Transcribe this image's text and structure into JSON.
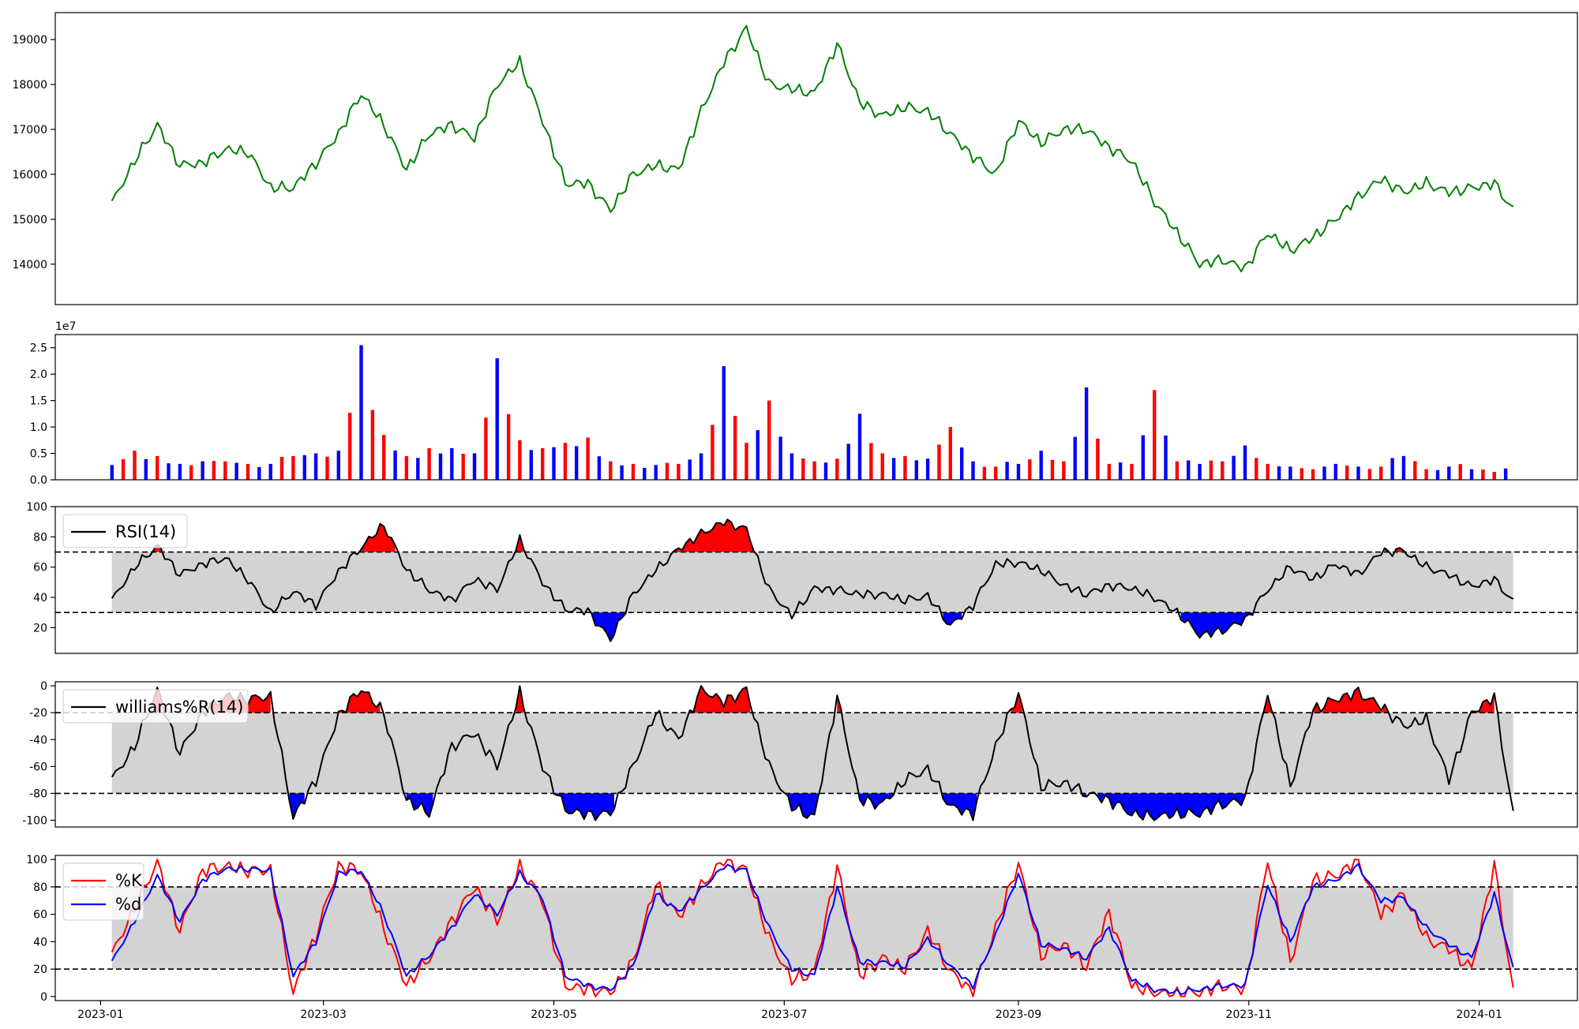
{
  "colors": {
    "price_line": "#008000",
    "volume_up": "#ff0000",
    "volume_down": "#0000ff",
    "overbought_fill": "#ff0000",
    "oversold_fill": "#0000ff",
    "band_fill": "#d3d3d3",
    "k_line": "#ff0000",
    "d_line": "#0000ff",
    "indicator_line": "#000000"
  },
  "x_axis": {
    "tick_labels": [
      "2023-01",
      "2023-03",
      "2023-05",
      "2023-07",
      "2023-09",
      "2023-11",
      "2024-01"
    ],
    "tick_dates": [
      "2023-01-01",
      "2023-03-01",
      "2023-05-01",
      "2023-07-01",
      "2023-09-01",
      "2023-11-01",
      "2024-01-01"
    ],
    "data_start": "2023-01-04",
    "data_end": "2024-01-10",
    "axis_min": "2022-12-20",
    "axis_max": "2024-01-27"
  },
  "chart_data": [
    {
      "type": "line",
      "panel": "price",
      "ylim": [
        13100,
        19600
      ],
      "yticks": [
        14000,
        15000,
        16000,
        17000,
        18000,
        19000
      ],
      "series": [
        {
          "x": [
            "2023-01-04",
            "2023-01-10",
            "2023-01-16",
            "2023-01-22",
            "2023-01-28",
            "2023-02-03",
            "2023-02-09",
            "2023-02-15",
            "2023-02-21",
            "2023-02-27",
            "2023-03-05",
            "2023-03-11",
            "2023-03-17",
            "2023-03-23",
            "2023-03-29",
            "2023-04-04",
            "2023-04-10",
            "2023-04-16",
            "2023-04-22",
            "2023-04-28",
            "2023-05-04",
            "2023-05-10",
            "2023-05-16",
            "2023-05-22",
            "2023-05-28",
            "2023-06-03",
            "2023-06-09",
            "2023-06-15",
            "2023-06-21",
            "2023-06-27",
            "2023-07-03",
            "2023-07-09",
            "2023-07-15",
            "2023-07-21",
            "2023-07-27",
            "2023-08-02",
            "2023-08-08",
            "2023-08-14",
            "2023-08-20",
            "2023-08-26",
            "2023-09-01",
            "2023-09-07",
            "2023-09-13",
            "2023-09-19",
            "2023-09-25",
            "2023-10-01",
            "2023-10-07",
            "2023-10-13",
            "2023-10-19",
            "2023-10-25",
            "2023-10-31",
            "2023-11-06",
            "2023-11-12",
            "2023-11-18",
            "2023-11-24",
            "2023-11-30",
            "2023-12-06",
            "2023-12-12",
            "2023-12-18",
            "2023-12-24",
            "2023-12-30",
            "2024-01-05",
            "2024-01-10"
          ],
          "values": [
            15350,
            16300,
            17100,
            16200,
            16250,
            16550,
            16500,
            15700,
            15700,
            16250,
            16900,
            17800,
            17100,
            16100,
            16900,
            17100,
            16800,
            18000,
            18500,
            17200,
            15800,
            15800,
            15200,
            16000,
            16200,
            16100,
            17400,
            18500,
            19250,
            18000,
            17900,
            17800,
            18900,
            17600,
            17300,
            17500,
            17400,
            16900,
            16400,
            16000,
            17200,
            16700,
            17000,
            17000,
            16600,
            16300,
            15400,
            14700,
            14000,
            14100,
            13900,
            14700,
            14300,
            14600,
            15000,
            15500,
            15900,
            15600,
            15800,
            15600,
            15700,
            15800,
            15200
          ]
        }
      ]
    },
    {
      "type": "bar",
      "panel": "volume",
      "multiplier_label": "1e7",
      "ylim": [
        0,
        2.75
      ],
      "yticks": [
        0.0,
        0.5,
        1.0,
        1.5,
        2.0,
        2.5
      ],
      "ytick_labels": [
        "0.0",
        "0.5",
        "1.0",
        "1.5",
        "2.0",
        "2.5"
      ],
      "x": [
        "2023-01-04",
        "2023-01-10",
        "2023-01-16",
        "2023-01-22",
        "2023-01-28",
        "2023-02-03",
        "2023-02-09",
        "2023-02-15",
        "2023-02-21",
        "2023-02-27",
        "2023-03-05",
        "2023-03-11",
        "2023-03-17",
        "2023-03-23",
        "2023-03-29",
        "2023-04-04",
        "2023-04-10",
        "2023-04-16",
        "2023-04-22",
        "2023-04-28",
        "2023-05-04",
        "2023-05-10",
        "2023-05-16",
        "2023-05-22",
        "2023-05-28",
        "2023-06-03",
        "2023-06-09",
        "2023-06-15",
        "2023-06-21",
        "2023-06-27",
        "2023-07-03",
        "2023-07-09",
        "2023-07-15",
        "2023-07-21",
        "2023-07-27",
        "2023-08-02",
        "2023-08-08",
        "2023-08-14",
        "2023-08-20",
        "2023-08-26",
        "2023-09-01",
        "2023-09-07",
        "2023-09-13",
        "2023-09-19",
        "2023-09-25",
        "2023-10-01",
        "2023-10-07",
        "2023-10-13",
        "2023-10-19",
        "2023-10-25",
        "2023-10-31",
        "2023-11-06",
        "2023-11-12",
        "2023-11-18",
        "2023-11-24",
        "2023-11-30",
        "2023-12-06",
        "2023-12-12",
        "2023-12-18",
        "2023-12-24",
        "2023-12-30",
        "2024-01-05",
        "2024-01-10"
      ],
      "values": [
        0.28,
        0.55,
        0.45,
        0.3,
        0.35,
        0.35,
        0.3,
        0.3,
        0.45,
        0.5,
        0.55,
        2.55,
        0.85,
        0.45,
        0.6,
        0.6,
        0.5,
        2.3,
        0.75,
        0.6,
        0.7,
        0.8,
        0.35,
        0.3,
        0.28,
        0.3,
        0.5,
        2.15,
        0.7,
        1.5,
        0.5,
        0.35,
        0.4,
        1.25,
        0.5,
        0.45,
        0.4,
        1.0,
        0.35,
        0.25,
        0.3,
        0.55,
        0.35,
        1.75,
        0.3,
        0.3,
        1.7,
        0.35,
        0.3,
        0.35,
        0.65,
        0.3,
        0.25,
        0.2,
        0.3,
        0.25,
        0.25,
        0.45,
        0.2,
        0.25,
        0.2,
        0.15,
        0.25
      ],
      "direction": [
        "up",
        "down",
        "down",
        "up",
        "up",
        "down",
        "down",
        "up",
        "down",
        "up",
        "up",
        "up",
        "down",
        "down",
        "down",
        "up",
        "up",
        "up",
        "down",
        "down",
        "down",
        "down",
        "down",
        "down",
        "up",
        "down",
        "up",
        "up",
        "down",
        "down",
        "up",
        "down",
        "down",
        "up",
        "down",
        "down",
        "up",
        "down",
        "up",
        "down",
        "up",
        "up",
        "down",
        "up",
        "down",
        "down",
        "down",
        "down",
        "up",
        "down",
        "up",
        "down",
        "up",
        "down",
        "up",
        "up",
        "down",
        "up",
        "down",
        "up",
        "up",
        "down",
        "down"
      ]
    },
    {
      "type": "line",
      "panel": "rsi",
      "ylim": [
        3,
        100
      ],
      "yticks": [
        20,
        40,
        60,
        80,
        100
      ],
      "thresholds": [
        30,
        70
      ],
      "series": [
        {
          "name": "RSI(14)",
          "x": [
            "2023-01-04",
            "2023-01-10",
            "2023-01-16",
            "2023-01-22",
            "2023-01-28",
            "2023-02-03",
            "2023-02-09",
            "2023-02-15",
            "2023-02-21",
            "2023-02-27",
            "2023-03-05",
            "2023-03-11",
            "2023-03-17",
            "2023-03-23",
            "2023-03-29",
            "2023-04-04",
            "2023-04-10",
            "2023-04-16",
            "2023-04-22",
            "2023-04-28",
            "2023-05-04",
            "2023-05-10",
            "2023-05-16",
            "2023-05-22",
            "2023-05-28",
            "2023-06-03",
            "2023-06-09",
            "2023-06-15",
            "2023-06-21",
            "2023-06-27",
            "2023-07-03",
            "2023-07-09",
            "2023-07-15",
            "2023-07-21",
            "2023-07-27",
            "2023-08-02",
            "2023-08-08",
            "2023-08-14",
            "2023-08-20",
            "2023-08-26",
            "2023-09-01",
            "2023-09-07",
            "2023-09-13",
            "2023-09-19",
            "2023-09-25",
            "2023-10-01",
            "2023-10-07",
            "2023-10-13",
            "2023-10-19",
            "2023-10-25",
            "2023-10-31",
            "2023-11-06",
            "2023-11-12",
            "2023-11-18",
            "2023-11-24",
            "2023-11-30",
            "2023-12-06",
            "2023-12-12",
            "2023-12-18",
            "2023-12-24",
            "2023-12-30",
            "2024-01-05",
            "2024-01-10"
          ],
          "values": [
            38,
            60,
            74,
            55,
            62,
            66,
            52,
            30,
            44,
            35,
            57,
            73,
            88,
            58,
            45,
            38,
            52,
            45,
            78,
            50,
            32,
            31,
            12,
            42,
            58,
            72,
            82,
            90,
            85,
            45,
            28,
            46,
            45,
            42,
            42,
            38,
            41,
            21,
            35,
            62,
            63,
            58,
            48,
            42,
            48,
            46,
            40,
            30,
            15,
            18,
            25,
            45,
            60,
            52,
            62,
            55,
            70,
            71,
            60,
            55,
            47,
            52,
            37
          ]
        }
      ]
    },
    {
      "type": "line",
      "panel": "williams",
      "ylim": [
        -105,
        3
      ],
      "yticks": [
        0,
        -20,
        -40,
        -60,
        -80,
        -100
      ],
      "thresholds": [
        -20,
        -80
      ],
      "series": [
        {
          "name": "williams%R(14)",
          "x": [
            "2023-01-04",
            "2023-01-10",
            "2023-01-16",
            "2023-01-22",
            "2023-01-28",
            "2023-02-03",
            "2023-02-09",
            "2023-02-15",
            "2023-02-21",
            "2023-02-27",
            "2023-03-05",
            "2023-03-11",
            "2023-03-17",
            "2023-03-23",
            "2023-03-29",
            "2023-04-04",
            "2023-04-10",
            "2023-04-16",
            "2023-04-22",
            "2023-04-28",
            "2023-05-04",
            "2023-05-10",
            "2023-05-16",
            "2023-05-22",
            "2023-05-28",
            "2023-06-03",
            "2023-06-09",
            "2023-06-15",
            "2023-06-21",
            "2023-06-27",
            "2023-07-03",
            "2023-07-09",
            "2023-07-15",
            "2023-07-21",
            "2023-07-27",
            "2023-08-02",
            "2023-08-08",
            "2023-08-14",
            "2023-08-20",
            "2023-08-26",
            "2023-09-01",
            "2023-09-07",
            "2023-09-13",
            "2023-09-19",
            "2023-09-25",
            "2023-10-01",
            "2023-10-07",
            "2023-10-13",
            "2023-10-19",
            "2023-10-25",
            "2023-10-31",
            "2023-11-06",
            "2023-11-12",
            "2023-11-18",
            "2023-11-24",
            "2023-11-30",
            "2023-12-06",
            "2023-12-12",
            "2023-12-18",
            "2023-12-24",
            "2023-12-30",
            "2024-01-05",
            "2024-01-10"
          ],
          "values": [
            -70,
            -45,
            -3,
            -50,
            -20,
            -8,
            -10,
            -8,
            -98,
            -70,
            -22,
            -2,
            -20,
            -85,
            -95,
            -45,
            -35,
            -60,
            -5,
            -60,
            -92,
            -96,
            -95,
            -60,
            -20,
            -40,
            -2,
            -12,
            -3,
            -60,
            -90,
            -98,
            -8,
            -85,
            -88,
            -70,
            -62,
            -90,
            -95,
            -45,
            -5,
            -75,
            -72,
            -80,
            -85,
            -95,
            -98,
            -95,
            -95,
            -88,
            -85,
            -5,
            -75,
            -18,
            -10,
            -5,
            -15,
            -30,
            -25,
            -70,
            -20,
            -8,
            -96
          ]
        }
      ]
    },
    {
      "type": "line",
      "panel": "stochastic",
      "ylim": [
        -3,
        103
      ],
      "yticks": [
        0,
        20,
        40,
        60,
        80,
        100
      ],
      "thresholds": [
        20,
        80
      ],
      "series": [
        {
          "name": "%K",
          "x": [
            "2023-01-04",
            "2023-01-10",
            "2023-01-16",
            "2023-01-22",
            "2023-01-28",
            "2023-02-03",
            "2023-02-09",
            "2023-02-15",
            "2023-02-21",
            "2023-02-27",
            "2023-03-05",
            "2023-03-11",
            "2023-03-17",
            "2023-03-23",
            "2023-03-29",
            "2023-04-04",
            "2023-04-10",
            "2023-04-16",
            "2023-04-22",
            "2023-04-28",
            "2023-05-04",
            "2023-05-10",
            "2023-05-16",
            "2023-05-22",
            "2023-05-28",
            "2023-06-03",
            "2023-06-09",
            "2023-06-15",
            "2023-06-21",
            "2023-06-27",
            "2023-07-03",
            "2023-07-09",
            "2023-07-15",
            "2023-07-21",
            "2023-07-27",
            "2023-08-02",
            "2023-08-08",
            "2023-08-14",
            "2023-08-20",
            "2023-08-26",
            "2023-09-01",
            "2023-09-07",
            "2023-09-13",
            "2023-09-19",
            "2023-09-25",
            "2023-10-01",
            "2023-10-07",
            "2023-10-13",
            "2023-10-19",
            "2023-10-25",
            "2023-10-31",
            "2023-11-06",
            "2023-11-12",
            "2023-11-18",
            "2023-11-24",
            "2023-11-30",
            "2023-12-06",
            "2023-12-12",
            "2023-12-18",
            "2023-12-24",
            "2023-12-30",
            "2024-01-05",
            "2024-01-10"
          ],
          "values": [
            30,
            65,
            98,
            48,
            92,
            95,
            92,
            92,
            3,
            45,
            95,
            92,
            50,
            8,
            28,
            55,
            80,
            55,
            95,
            70,
            8,
            5,
            3,
            25,
            82,
            58,
            80,
            100,
            92,
            42,
            12,
            18,
            95,
            15,
            28,
            20,
            48,
            18,
            3,
            50,
            98,
            30,
            38,
            22,
            62,
            8,
            2,
            2,
            3,
            8,
            5,
            100,
            25,
            85,
            88,
            100,
            60,
            75,
            42,
            35,
            20,
            96,
            3
          ]
        },
        {
          "name": "%d",
          "x": [
            "2023-01-04",
            "2023-01-10",
            "2023-01-16",
            "2023-01-22",
            "2023-01-28",
            "2023-02-03",
            "2023-02-09",
            "2023-02-15",
            "2023-02-21",
            "2023-02-27",
            "2023-03-05",
            "2023-03-11",
            "2023-03-17",
            "2023-03-23",
            "2023-03-29",
            "2023-04-04",
            "2023-04-10",
            "2023-04-16",
            "2023-04-22",
            "2023-04-28",
            "2023-05-04",
            "2023-05-10",
            "2023-05-16",
            "2023-05-22",
            "2023-05-28",
            "2023-06-03",
            "2023-06-09",
            "2023-06-15",
            "2023-06-21",
            "2023-06-27",
            "2023-07-03",
            "2023-07-09",
            "2023-07-15",
            "2023-07-21",
            "2023-07-27",
            "2023-08-02",
            "2023-08-08",
            "2023-08-14",
            "2023-08-20",
            "2023-08-26",
            "2023-09-01",
            "2023-09-07",
            "2023-09-13",
            "2023-09-19",
            "2023-09-25",
            "2023-10-01",
            "2023-10-07",
            "2023-10-13",
            "2023-10-19",
            "2023-10-25",
            "2023-10-31",
            "2023-11-06",
            "2023-11-12",
            "2023-11-18",
            "2023-11-24",
            "2023-11-30",
            "2023-12-06",
            "2023-12-12",
            "2023-12-18",
            "2023-12-24",
            "2023-12-30",
            "2024-01-05",
            "2024-01-10"
          ],
          "values": [
            25,
            55,
            88,
            55,
            85,
            93,
            93,
            92,
            15,
            40,
            90,
            92,
            60,
            15,
            30,
            50,
            75,
            60,
            90,
            72,
            15,
            8,
            5,
            22,
            75,
            62,
            78,
            95,
            92,
            50,
            20,
            15,
            80,
            25,
            25,
            22,
            42,
            22,
            8,
            45,
            90,
            38,
            35,
            28,
            50,
            12,
            5,
            3,
            5,
            8,
            8,
            82,
            40,
            80,
            85,
            95,
            70,
            72,
            50,
            38,
            28,
            75,
            20
          ]
        }
      ]
    }
  ]
}
